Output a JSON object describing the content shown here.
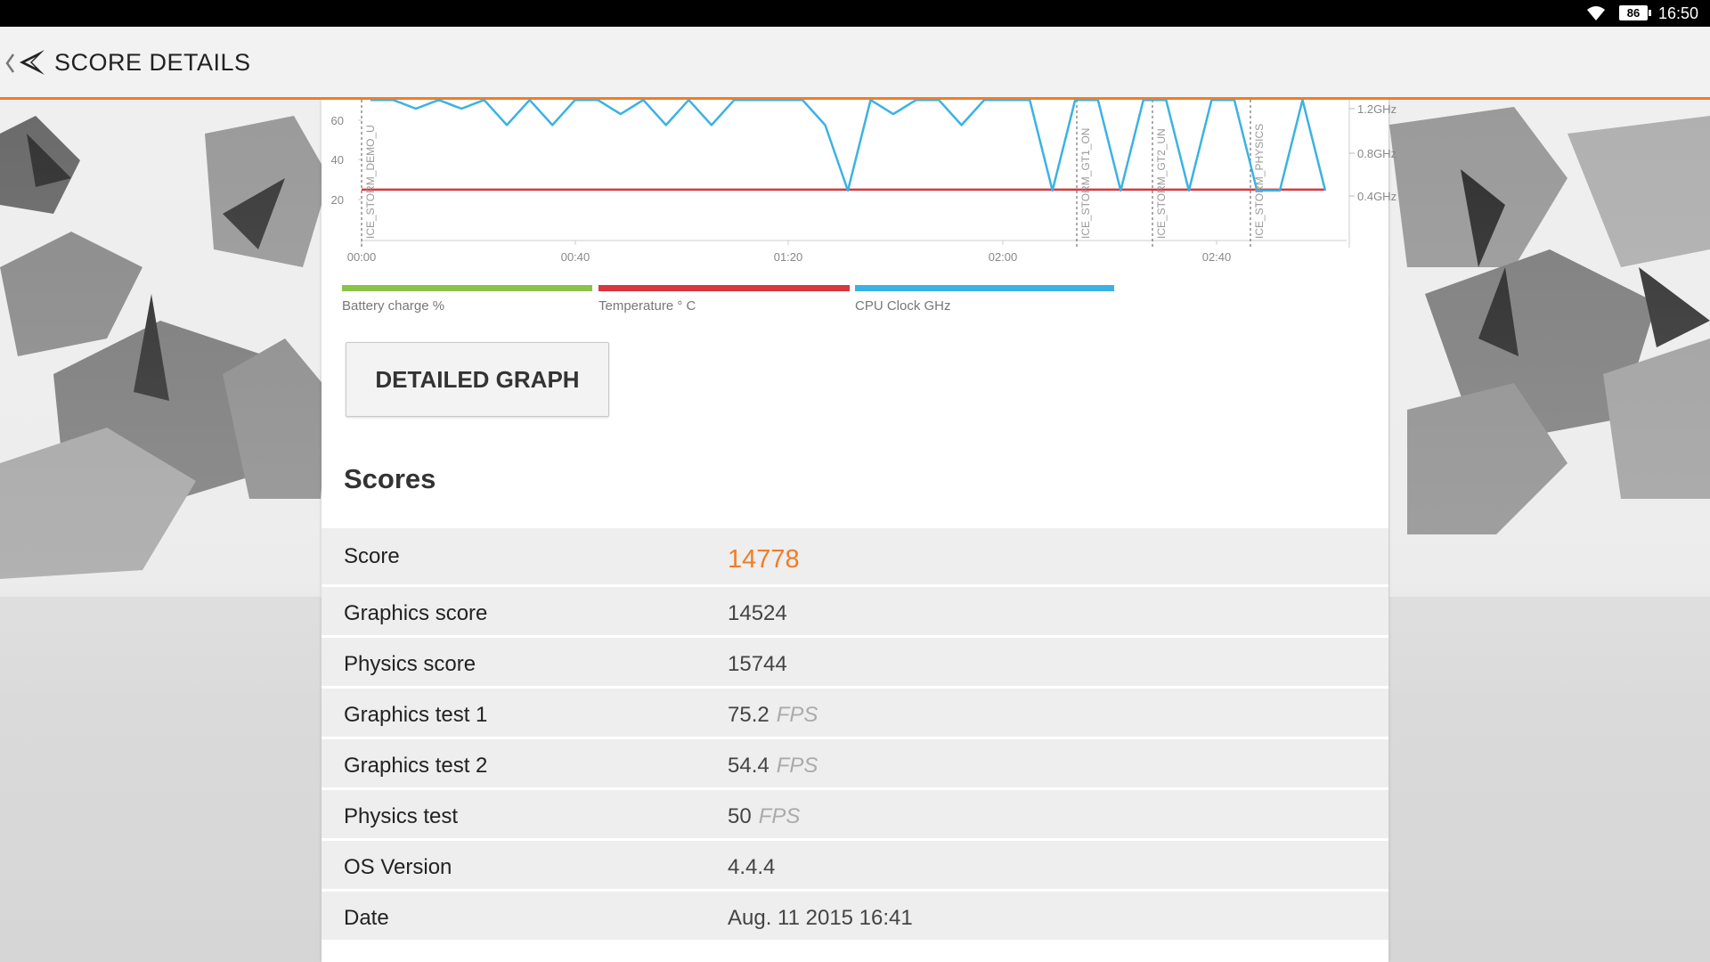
{
  "status_bar": {
    "battery_level": "86",
    "time": "16:50"
  },
  "app_bar": {
    "title": "SCORE DETAILS"
  },
  "chart_data": {
    "type": "line",
    "x_ticks": [
      "00:00",
      "00:40",
      "01:20",
      "02:00",
      "02:40"
    ],
    "y_left_ticks": [
      "60",
      "40",
      "20"
    ],
    "y_right_ticks": [
      "1.2GHz",
      "0.8GHz",
      "0.4GHz"
    ],
    "markers": [
      "ICE_STORM_DEMO_U",
      "ICE_STORM_GT1_ON",
      "ICE_STORM_GT2_UN",
      "ICE_STORM_PHYSICS"
    ],
    "legend": [
      {
        "label": "Battery charge %",
        "color": "#8bc34a"
      },
      {
        "label": "Temperature  ° C",
        "color": "#d9363e"
      },
      {
        "label": "CPU Clock GHz",
        "color": "#3bb2e3"
      }
    ],
    "series": [
      {
        "name": "Temperature  ° C",
        "values": [
          25,
          25
        ]
      },
      {
        "name": "CPU Clock GHz",
        "values": [
          1.28,
          1.28,
          1.2,
          1.28,
          1.2,
          1.28,
          1.05,
          1.28,
          1.05,
          1.28,
          1.28,
          1.15,
          1.28,
          1.05,
          1.28,
          1.05,
          1.28,
          1.28,
          1.28,
          1.28,
          1.05,
          0.45,
          1.28,
          1.15,
          1.28,
          1.28,
          1.05,
          1.28,
          1.28,
          1.28,
          0.45,
          1.28,
          1.28,
          0.45,
          1.28,
          1.28,
          0.45,
          1.28,
          1.28,
          0.45,
          0.45,
          1.28,
          0.45
        ]
      }
    ]
  },
  "detailed_graph_button": "DETAILED GRAPH",
  "scores_heading": "Scores",
  "scores": [
    {
      "label": "Score",
      "value": "14778",
      "unit": ""
    },
    {
      "label": "Graphics score",
      "value": "14524",
      "unit": ""
    },
    {
      "label": "Physics score",
      "value": "15744",
      "unit": ""
    },
    {
      "label": "Graphics test 1",
      "value": "75.2",
      "unit": "FPS"
    },
    {
      "label": "Graphics test 2",
      "value": "54.4",
      "unit": "FPS"
    },
    {
      "label": "Physics test",
      "value": "50",
      "unit": "FPS"
    },
    {
      "label": "OS Version",
      "value": "4.4.4",
      "unit": ""
    },
    {
      "label": "Date",
      "value": "Aug. 11 2015 16:41",
      "unit": ""
    }
  ]
}
